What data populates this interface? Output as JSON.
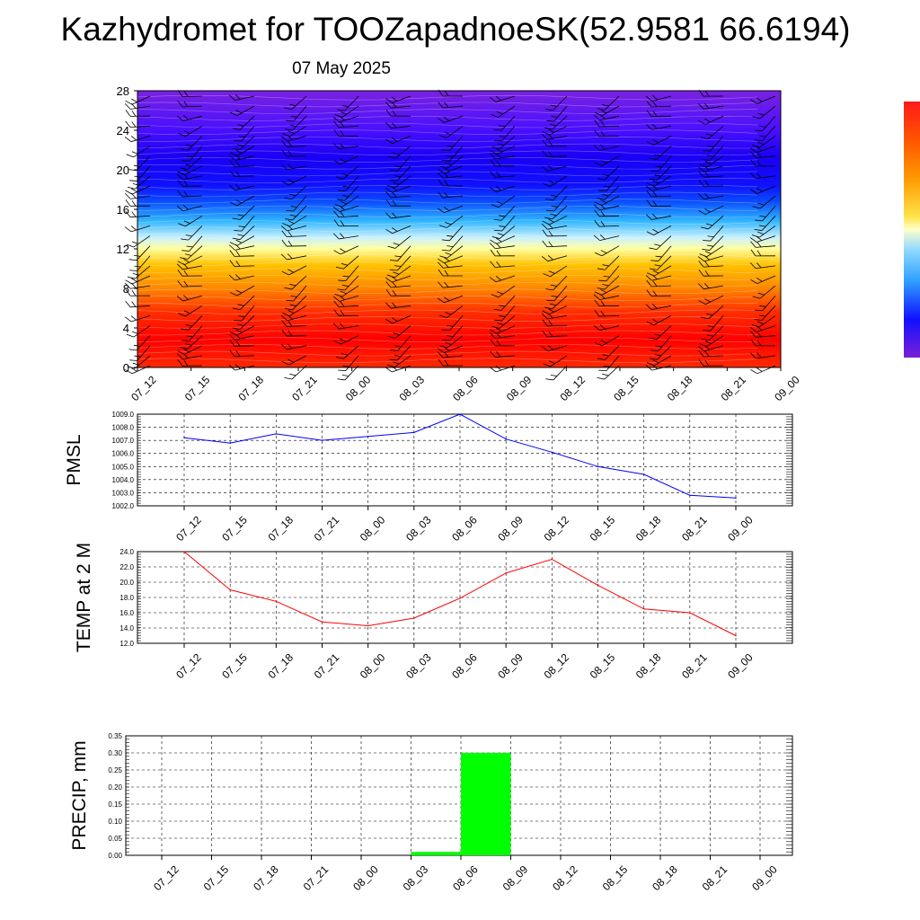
{
  "title": "Kazhydromet for TOOZapadnoeSK(52.9581 66.6194)",
  "subtitle": "07 May 2025",
  "colors": {
    "pmsl_line": "#0000ff",
    "temp_line": "#ff0000",
    "precip_bar": "#00ff00",
    "colorbar": [
      "#7a1fd6",
      "#5a12f0",
      "#1f00ff",
      "#0b1fff",
      "#1a6cff",
      "#2fb2ff",
      "#8fd9ff",
      "#ffffcc",
      "#ffe14a",
      "#ffb000",
      "#ff7a00",
      "#ff4b00",
      "#ff1a00",
      "#ff0000",
      "#e80000"
    ]
  },
  "chart_data": [
    {
      "type": "heatmap",
      "name": "meteogram-field",
      "x_ticks": [
        "07_12",
        "07_15",
        "07_18",
        "07_21",
        "08_00",
        "08_03",
        "08_06",
        "08_09",
        "08_12",
        "08_15",
        "08_18",
        "08_21",
        "09_00"
      ],
      "y_ticks": [
        0,
        4,
        8,
        12,
        16,
        20,
        24,
        28
      ],
      "ylim": [
        0,
        28
      ],
      "overlay": "wind barbs",
      "colorbar": "purple-blue-cyan-yellow-orange-red"
    },
    {
      "type": "line",
      "ylabel": "PMSL",
      "categories": [
        "07_12",
        "07_15",
        "07_18",
        "07_21",
        "08_00",
        "08_03",
        "08_06",
        "08_09",
        "08_12",
        "08_15",
        "08_18",
        "08_21",
        "09_00"
      ],
      "y_ticks": [
        "1009.0",
        "1008.0",
        "1007.0",
        "1006.0",
        "1005.0",
        "1004.0",
        "1003.0",
        "1002.0"
      ],
      "ylim": [
        1002,
        1009
      ],
      "values": [
        1007.2,
        1006.8,
        1007.5,
        1007.0,
        1007.3,
        1007.6,
        1009.0,
        1007.1,
        1006.1,
        1005.0,
        1004.4,
        1002.8,
        1002.6
      ],
      "grid": true
    },
    {
      "type": "line",
      "ylabel": "TEMP at 2 M",
      "categories": [
        "07_12",
        "07_15",
        "07_18",
        "07_21",
        "08_00",
        "08_03",
        "08_06",
        "08_09",
        "08_12",
        "08_15",
        "08_18",
        "08_21",
        "09_00"
      ],
      "y_ticks": [
        "24.0",
        "22.0",
        "20.0",
        "18.0",
        "16.0",
        "14.0",
        "12.0"
      ],
      "ylim": [
        12,
        24
      ],
      "values": [
        24.0,
        19.0,
        17.5,
        14.8,
        14.3,
        15.3,
        17.9,
        21.2,
        23.0,
        19.6,
        16.5,
        16.0,
        13.0
      ],
      "grid": true
    },
    {
      "type": "bar",
      "ylabel": "PRECIP, mm",
      "categories": [
        "07_12",
        "07_15",
        "07_18",
        "07_21",
        "08_00",
        "08_03",
        "08_06",
        "08_09",
        "08_12",
        "08_15",
        "08_18",
        "08_21",
        "09_00"
      ],
      "y_ticks": [
        "0.35",
        "0.30",
        "0.25",
        "0.20",
        "0.15",
        "0.10",
        "0.05",
        "0.00"
      ],
      "ylim": [
        0,
        0.35
      ],
      "values": [
        0,
        0,
        0,
        0,
        0,
        0,
        0.01,
        0.3,
        0,
        0,
        0,
        0,
        0
      ],
      "grid": true
    }
  ]
}
